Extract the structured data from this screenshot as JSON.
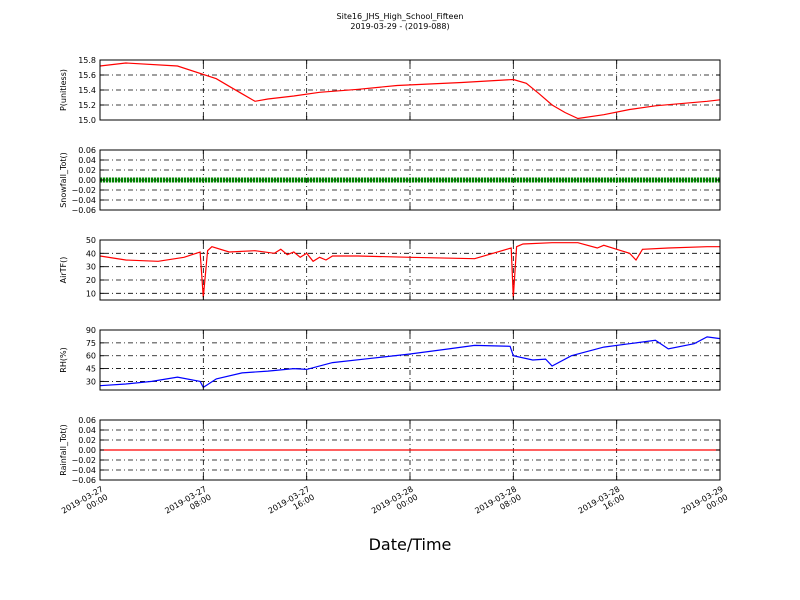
{
  "title": "Site16_JHS_High_School_Fifteen",
  "subtitle": "2019-03-29 - (2019-088)",
  "xlabel": "Date/Time",
  "xticks": [
    [
      "2019-03-27",
      "00:00"
    ],
    [
      "2019-03-27",
      "08:00"
    ],
    [
      "2019-03-27",
      "16:00"
    ],
    [
      "2019-03-28",
      "00:00"
    ],
    [
      "2019-03-28",
      "08:00"
    ],
    [
      "2019-03-28",
      "16:00"
    ],
    [
      "2019-03-29",
      "00:00"
    ]
  ],
  "chart_data": [
    {
      "type": "line",
      "ylabel": "P(unitless)",
      "color": "#ff0000",
      "ylim": [
        15.0,
        15.8
      ],
      "yticks": [
        "15.0",
        "15.2",
        "15.4",
        "15.6",
        "15.8"
      ],
      "grid": true,
      "xlim": [
        "2019-03-27 00:00",
        "2019-03-29 00:00"
      ],
      "x": [
        "2019-03-27 00:00",
        "2019-03-27 02:00",
        "2019-03-27 06:00",
        "2019-03-27 09:00",
        "2019-03-27 10:00",
        "2019-03-27 11:00",
        "2019-03-27 12:00",
        "2019-03-27 13:00",
        "2019-03-27 15:00",
        "2019-03-27 17:00",
        "2019-03-27 20:00",
        "2019-03-27 23:00",
        "2019-03-28 04:00",
        "2019-03-28 08:00",
        "2019-03-28 09:00",
        "2019-03-28 10:00",
        "2019-03-28 11:00",
        "2019-03-28 12:00",
        "2019-03-28 13:00",
        "2019-03-28 15:00",
        "2019-03-28 17:00",
        "2019-03-28 19:00",
        "2019-03-28 23:00",
        "2019-03-29 00:00"
      ],
      "values": [
        15.72,
        15.76,
        15.72,
        15.55,
        15.45,
        15.35,
        15.25,
        15.28,
        15.32,
        15.37,
        15.41,
        15.46,
        15.5,
        15.54,
        15.49,
        15.35,
        15.2,
        15.1,
        15.02,
        15.07,
        15.14,
        15.19,
        15.25,
        15.27
      ]
    },
    {
      "type": "scatter",
      "ylabel": "Snowfall_Tot()",
      "color": "#008000",
      "ylim": [
        -0.06,
        0.06
      ],
      "yticks": [
        "−0.06",
        "−0.04",
        "−0.02",
        "0.00",
        "0.02",
        "0.04",
        "0.06"
      ],
      "grid": true,
      "xlim": [
        "2019-03-27 00:00",
        "2019-03-29 00:00"
      ],
      "x": [
        "2019-03-27 00:00",
        "2019-03-29 00:00"
      ],
      "values": [
        0.0,
        0.0
      ]
    },
    {
      "type": "line",
      "ylabel": "AirTF()",
      "color": "#ff0000",
      "ylim": [
        5,
        50
      ],
      "yticks": [
        "10",
        "20",
        "30",
        "40",
        "50"
      ],
      "grid": true,
      "xlim": [
        "2019-03-27 00:00",
        "2019-03-29 00:00"
      ],
      "x": [
        "2019-03-27 00:00",
        "2019-03-27 02:00",
        "2019-03-27 04:30",
        "2019-03-27 06:30",
        "2019-03-27 07:45",
        "2019-03-27 08:00",
        "2019-03-27 08:20",
        "2019-03-27 08:40",
        "2019-03-27 10:00",
        "2019-03-27 12:00",
        "2019-03-27 13:30",
        "2019-03-27 14:00",
        "2019-03-27 14:30",
        "2019-03-27 15:00",
        "2019-03-27 15:30",
        "2019-03-27 16:00",
        "2019-03-27 16:30",
        "2019-03-27 17:00",
        "2019-03-27 17:30",
        "2019-03-27 18:00",
        "2019-03-27 20:00",
        "2019-03-28 00:00",
        "2019-03-28 05:00",
        "2019-03-28 07:50",
        "2019-03-28 08:00",
        "2019-03-28 08:15",
        "2019-03-28 08:45",
        "2019-03-28 11:00",
        "2019-03-28 13:00",
        "2019-03-28 14:30",
        "2019-03-28 15:00",
        "2019-03-28 16:00",
        "2019-03-28 17:00",
        "2019-03-28 17:30",
        "2019-03-28 18:00",
        "2019-03-28 20:00",
        "2019-03-28 23:00",
        "2019-03-29 00:00"
      ],
      "values": [
        38,
        35,
        34,
        37,
        41,
        7,
        42,
        45,
        41,
        42,
        40,
        43,
        39,
        41,
        37,
        40,
        34,
        37,
        35,
        38,
        38,
        37,
        36,
        44,
        7,
        45,
        47,
        48,
        48,
        44,
        46,
        43,
        40,
        35,
        43,
        44,
        45,
        45
      ]
    },
    {
      "type": "line",
      "ylabel": "RH(%)",
      "color": "#0000ff",
      "ylim": [
        20,
        90
      ],
      "yticks": [
        "30",
        "45",
        "60",
        "75",
        "90"
      ],
      "grid": true,
      "xlim": [
        "2019-03-27 00:00",
        "2019-03-29 00:00"
      ],
      "x": [
        "2019-03-27 00:00",
        "2019-03-27 02:00",
        "2019-03-27 04:00",
        "2019-03-27 06:00",
        "2019-03-27 07:45",
        "2019-03-27 08:00",
        "2019-03-27 09:00",
        "2019-03-27 11:00",
        "2019-03-27 13:00",
        "2019-03-27 15:00",
        "2019-03-27 16:00",
        "2019-03-27 18:00",
        "2019-03-27 21:00",
        "2019-03-28 00:00",
        "2019-03-28 03:00",
        "2019-03-28 05:00",
        "2019-03-28 07:45",
        "2019-03-28 08:00",
        "2019-03-28 09:30",
        "2019-03-28 10:30",
        "2019-03-28 11:00",
        "2019-03-28 12:30",
        "2019-03-28 15:00",
        "2019-03-28 17:00",
        "2019-03-28 19:00",
        "2019-03-28 20:00",
        "2019-03-28 22:00",
        "2019-03-28 23:00",
        "2019-03-29 00:00"
      ],
      "values": [
        25,
        27,
        30,
        35,
        30,
        23,
        33,
        40,
        42,
        45,
        44,
        52,
        57,
        62,
        68,
        72,
        71,
        60,
        55,
        56,
        48,
        60,
        70,
        74,
        78,
        68,
        74,
        82,
        80
      ]
    },
    {
      "type": "line",
      "ylabel": "Rainfall_Tot()",
      "color": "#ff0000",
      "ylim": [
        -0.06,
        0.06
      ],
      "yticks": [
        "−0.06",
        "−0.04",
        "−0.02",
        "0.00",
        "0.02",
        "0.04",
        "0.06"
      ],
      "grid": true,
      "xlim": [
        "2019-03-27 00:00",
        "2019-03-29 00:00"
      ],
      "x": [
        "2019-03-27 00:00",
        "2019-03-29 00:00"
      ],
      "values": [
        0.0,
        0.0
      ]
    }
  ]
}
